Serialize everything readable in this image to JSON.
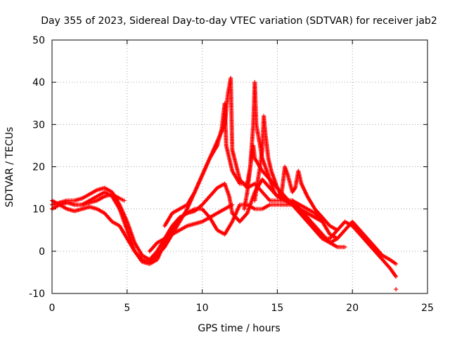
{
  "chart_data": {
    "type": "scatter",
    "title": "Day 355 of 2023, Sidereal Day-to-day VTEC variation (SDTVAR) for receiver jab2",
    "xlabel": "GPS time / hours",
    "ylabel": "SDTVAR / TECUs",
    "xlim": [
      0,
      25
    ],
    "ylim": [
      -10,
      50
    ],
    "xticks": [
      0,
      5,
      10,
      15,
      20,
      25
    ],
    "yticks": [
      -10,
      0,
      10,
      20,
      30,
      40,
      50
    ],
    "grid": true,
    "marker": "+",
    "color": "#ff0000",
    "series": [
      {
        "name": "sat-a",
        "points": [
          [
            0.0,
            10
          ],
          [
            0.5,
            11
          ],
          [
            1.0,
            11.5
          ],
          [
            1.5,
            11
          ],
          [
            2.0,
            11
          ],
          [
            2.5,
            12
          ],
          [
            3.0,
            13
          ],
          [
            3.5,
            14
          ],
          [
            4.0,
            13
          ],
          [
            4.5,
            10
          ],
          [
            5.0,
            5
          ],
          [
            5.5,
            0
          ],
          [
            6.0,
            -2.5
          ],
          [
            6.5,
            -3
          ],
          [
            7.0,
            -2
          ],
          [
            7.5,
            2
          ],
          [
            8.0,
            5
          ],
          [
            8.5,
            8
          ],
          [
            9.0,
            9
          ],
          [
            9.5,
            10
          ],
          [
            10.0,
            10
          ],
          [
            10.5,
            8
          ],
          [
            11.0,
            5
          ],
          [
            11.5,
            4
          ],
          [
            12.0,
            7
          ],
          [
            12.5,
            11
          ],
          [
            13.0,
            11
          ],
          [
            13.5,
            10
          ],
          [
            14.0,
            10
          ],
          [
            14.5,
            11
          ],
          [
            15.0,
            11
          ],
          [
            15.5,
            11
          ],
          [
            16.0,
            11
          ],
          [
            16.5,
            9
          ],
          [
            17.0,
            7
          ],
          [
            17.5,
            5
          ],
          [
            18.0,
            3
          ],
          [
            18.5,
            3
          ],
          [
            19.0,
            5
          ],
          [
            19.5,
            7
          ],
          [
            20.0,
            6
          ],
          [
            20.5,
            4
          ],
          [
            21.0,
            2
          ],
          [
            21.5,
            0
          ],
          [
            22.0,
            -2
          ],
          [
            22.5,
            -4
          ],
          [
            22.9,
            -6
          ]
        ]
      },
      {
        "name": "sat-b",
        "points": [
          [
            0.0,
            11
          ],
          [
            0.5,
            11.5
          ],
          [
            1.0,
            12
          ],
          [
            1.5,
            12
          ],
          [
            2.0,
            12.5
          ],
          [
            2.5,
            13.5
          ],
          [
            3.0,
            14.5
          ],
          [
            3.5,
            15
          ],
          [
            4.0,
            14
          ],
          [
            4.5,
            11
          ],
          [
            5.0,
            7
          ],
          [
            5.5,
            2
          ],
          [
            6.0,
            -1
          ],
          [
            6.5,
            -2
          ],
          [
            7.0,
            0
          ],
          [
            7.5,
            3
          ],
          [
            8.0,
            6
          ],
          [
            8.5,
            8
          ],
          [
            9.0,
            9
          ],
          [
            9.5,
            9.5
          ],
          [
            10.0,
            11
          ],
          [
            10.5,
            13
          ],
          [
            11.0,
            15
          ],
          [
            11.5,
            16
          ],
          [
            11.8,
            13
          ],
          [
            12.0,
            9
          ],
          [
            12.5,
            7
          ],
          [
            13.0,
            9
          ],
          [
            13.5,
            14
          ],
          [
            14.0,
            17
          ],
          [
            14.5,
            15
          ],
          [
            15.0,
            13
          ],
          [
            15.5,
            12
          ],
          [
            16.0,
            11
          ],
          [
            16.5,
            10
          ],
          [
            17.0,
            8
          ],
          [
            17.5,
            5
          ],
          [
            18.0,
            3
          ],
          [
            18.5,
            2
          ],
          [
            19.0,
            3
          ],
          [
            19.5,
            5
          ],
          [
            20.0,
            7
          ],
          [
            20.5,
            5
          ],
          [
            21.0,
            3
          ],
          [
            21.5,
            1
          ],
          [
            22.0,
            -1
          ],
          [
            22.5,
            -2
          ],
          [
            22.9,
            -3
          ]
        ]
      },
      {
        "name": "sat-c",
        "points": [
          [
            0.0,
            12
          ],
          [
            0.5,
            11
          ],
          [
            1.0,
            10
          ],
          [
            1.5,
            9.5
          ],
          [
            2.0,
            10
          ],
          [
            2.5,
            10.5
          ],
          [
            3.0,
            10
          ],
          [
            3.5,
            9
          ],
          [
            4.0,
            7
          ],
          [
            4.5,
            6
          ],
          [
            5.0,
            3
          ],
          [
            5.5,
            0
          ],
          [
            6.0,
            -2
          ],
          [
            6.5,
            -2.5
          ],
          [
            7.0,
            -1
          ],
          [
            7.5,
            1
          ],
          [
            8.0,
            4
          ],
          [
            8.5,
            7
          ],
          [
            9.0,
            10
          ],
          [
            9.5,
            14
          ],
          [
            10.0,
            18
          ],
          [
            10.5,
            22
          ],
          [
            11.0,
            26
          ],
          [
            11.5,
            30
          ],
          [
            11.7,
            37
          ],
          [
            11.9,
            41
          ],
          [
            12.0,
            24
          ],
          [
            12.5,
            17
          ],
          [
            13.0,
            15
          ],
          [
            13.5,
            16
          ],
          [
            14.0,
            14
          ],
          [
            14.5,
            12
          ],
          [
            15.0,
            12
          ],
          [
            15.5,
            12
          ],
          [
            16.0,
            12
          ],
          [
            16.5,
            10
          ],
          [
            17.0,
            8
          ],
          [
            17.5,
            6
          ],
          [
            18.0,
            4
          ],
          [
            18.5,
            2
          ],
          [
            19.0,
            1
          ],
          [
            19.5,
            1
          ]
        ]
      },
      {
        "name": "sat-d",
        "points": [
          [
            7.5,
            6
          ],
          [
            8.0,
            9
          ],
          [
            8.5,
            10
          ],
          [
            9.0,
            11
          ],
          [
            9.5,
            14
          ],
          [
            10.0,
            18
          ],
          [
            10.5,
            22
          ],
          [
            11.0,
            25
          ],
          [
            11.3,
            29
          ],
          [
            11.5,
            35
          ],
          [
            11.6,
            25
          ],
          [
            12.0,
            19
          ],
          [
            12.5,
            16
          ],
          [
            13.0,
            16
          ],
          [
            13.2,
            20
          ],
          [
            13.4,
            25
          ],
          [
            13.5,
            22
          ],
          [
            14.0,
            19
          ],
          [
            14.5,
            17
          ],
          [
            15.0,
            15
          ],
          [
            15.5,
            13
          ],
          [
            16.0,
            11
          ],
          [
            16.5,
            10
          ],
          [
            17.0,
            9
          ],
          [
            17.5,
            8
          ],
          [
            18.0,
            7
          ],
          [
            18.5,
            4
          ],
          [
            19.0,
            3
          ]
        ]
      },
      {
        "name": "sat-e",
        "points": [
          [
            12.8,
            10
          ],
          [
            13.0,
            14
          ],
          [
            13.2,
            20
          ],
          [
            13.4,
            30
          ],
          [
            13.5,
            40
          ],
          [
            13.6,
            30
          ],
          [
            13.8,
            26
          ],
          [
            14.0,
            22
          ],
          [
            14.2,
            20
          ],
          [
            14.4,
            18
          ],
          [
            14.6,
            16
          ],
          [
            14.8,
            14
          ],
          [
            15.0,
            13
          ],
          [
            15.3,
            14
          ],
          [
            15.5,
            20
          ],
          [
            15.7,
            18
          ],
          [
            16.0,
            14
          ],
          [
            16.2,
            15
          ],
          [
            16.4,
            19
          ],
          [
            16.6,
            16
          ],
          [
            17.0,
            13
          ],
          [
            17.5,
            10
          ],
          [
            18.0,
            8
          ],
          [
            18.5,
            6
          ],
          [
            19.0,
            5
          ]
        ]
      },
      {
        "name": "sat-f",
        "points": [
          [
            13.5,
            12
          ],
          [
            13.8,
            19
          ],
          [
            14.0,
            24
          ],
          [
            14.1,
            32
          ],
          [
            14.2,
            28
          ],
          [
            14.4,
            22
          ],
          [
            14.6,
            19
          ],
          [
            14.8,
            17
          ],
          [
            15.0,
            15
          ],
          [
            15.3,
            13
          ],
          [
            15.7,
            12
          ],
          [
            16.0,
            12
          ],
          [
            16.5,
            11
          ],
          [
            17.0,
            10
          ],
          [
            17.5,
            9
          ],
          [
            18.0,
            7
          ]
        ]
      },
      {
        "name": "sat-g",
        "points": [
          [
            6.5,
            0
          ],
          [
            7.0,
            2
          ],
          [
            7.5,
            3
          ],
          [
            8.0,
            4
          ],
          [
            8.5,
            5
          ],
          [
            9.0,
            6
          ],
          [
            9.5,
            6.5
          ],
          [
            10.0,
            7
          ],
          [
            10.5,
            8
          ],
          [
            11.0,
            9
          ],
          [
            11.5,
            10
          ],
          [
            12.0,
            11
          ]
        ]
      },
      {
        "name": "sat-h",
        "points": [
          [
            1.5,
            11
          ],
          [
            2.0,
            11
          ],
          [
            2.5,
            11.5
          ],
          [
            3.0,
            12
          ],
          [
            3.5,
            13
          ],
          [
            4.0,
            13.5
          ],
          [
            4.5,
            12.5
          ],
          [
            4.8,
            12
          ]
        ]
      }
    ],
    "isolated_points": [
      [
        22.9,
        -9
      ]
    ]
  }
}
